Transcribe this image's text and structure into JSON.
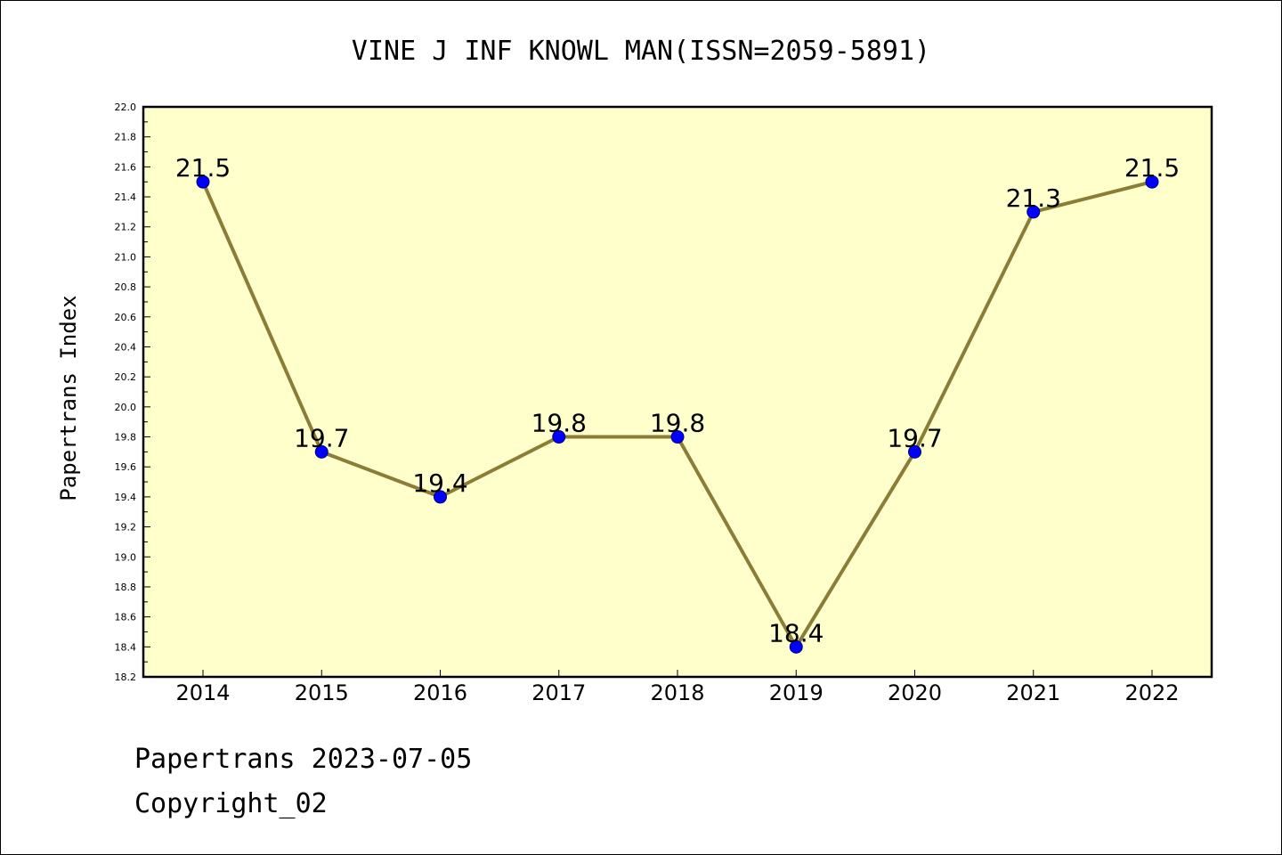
{
  "colors": {
    "plot_background": "#ffffcc",
    "line": "#8b7d35",
    "marker_fill": "#0000ff",
    "marker_edge": "#000080",
    "axis": "#000000"
  },
  "chart_data": {
    "type": "line",
    "title": "VINE J INF KNOWL MAN(ISSN=2059-5891)",
    "xlabel": "",
    "ylabel": "Papertrans Index",
    "categories": [
      "2014",
      "2015",
      "2016",
      "2017",
      "2018",
      "2019",
      "2020",
      "2021",
      "2022"
    ],
    "values": [
      21.5,
      19.7,
      19.4,
      19.8,
      19.8,
      18.4,
      19.7,
      21.3,
      21.5
    ],
    "data_labels": [
      "21.5",
      "19.7",
      "19.4",
      "19.8",
      "19.8",
      "18.4",
      "19.7",
      "21.3",
      "21.5"
    ],
    "ylim": [
      18.2,
      22.0
    ],
    "yticks": [
      "18.2",
      "18.4",
      "18.6",
      "18.8",
      "19.0",
      "19.2",
      "19.4",
      "19.6",
      "19.8",
      "20.0",
      "20.2",
      "20.4",
      "20.6",
      "20.8",
      "21.0",
      "21.2",
      "21.4",
      "21.6",
      "21.8",
      "22.0"
    ],
    "grid": false,
    "legend": "none"
  },
  "footer": {
    "line1": "Papertrans 2023-07-05",
    "line2": "Copyright_02"
  }
}
